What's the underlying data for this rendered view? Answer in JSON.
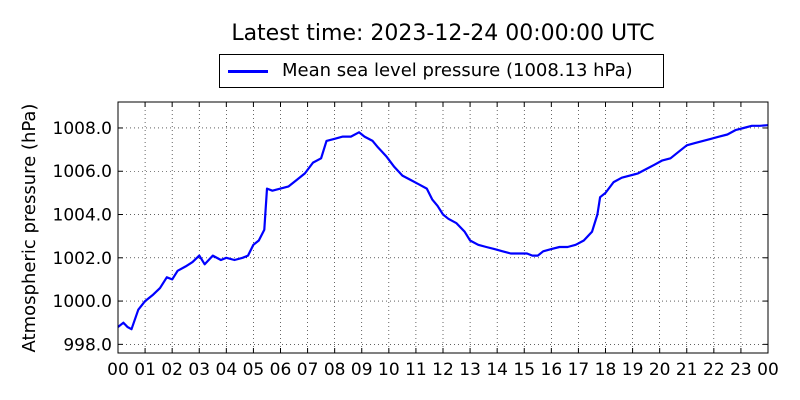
{
  "chart_data": {
    "type": "line",
    "title": "Latest time: 2023-12-24 00:00:00 UTC",
    "ylabel": "Atmospheric pressure (hPa)",
    "xlabel": "",
    "x_unit": "hour",
    "xlim": [
      0,
      24
    ],
    "ylim": [
      997.6,
      1009.2
    ],
    "grid": true,
    "legend_position": "top-center",
    "x_ticks": [
      0,
      1,
      2,
      3,
      4,
      5,
      6,
      7,
      8,
      9,
      10,
      11,
      12,
      13,
      14,
      15,
      16,
      17,
      18,
      19,
      20,
      21,
      22,
      23,
      24
    ],
    "x_tick_labels": [
      "00",
      "01",
      "02",
      "03",
      "04",
      "05",
      "06",
      "07",
      "08",
      "09",
      "10",
      "11",
      "12",
      "13",
      "14",
      "15",
      "16",
      "17",
      "18",
      "19",
      "20",
      "21",
      "22",
      "23",
      "00"
    ],
    "y_ticks": [
      998.0,
      1000.0,
      1002.0,
      1004.0,
      1006.0,
      1008.0
    ],
    "y_tick_labels": [
      "998.0",
      "1000.0",
      "1002.0",
      "1004.0",
      "1006.0",
      "1008.0"
    ],
    "series": [
      {
        "name": "Mean sea level pressure (1008.13 hPa)",
        "color": "#0000ff",
        "x": [
          0.0,
          0.2,
          0.35,
          0.5,
          0.75,
          1.0,
          1.3,
          1.55,
          1.8,
          2.0,
          2.2,
          2.5,
          2.75,
          3.0,
          3.2,
          3.5,
          3.8,
          4.0,
          4.3,
          4.6,
          4.8,
          5.0,
          5.2,
          5.4,
          5.5,
          5.7,
          6.0,
          6.3,
          6.6,
          6.9,
          7.2,
          7.5,
          7.7,
          8.0,
          8.3,
          8.6,
          8.9,
          9.1,
          9.4,
          9.6,
          9.9,
          10.2,
          10.5,
          10.8,
          11.1,
          11.4,
          11.6,
          11.8,
          12.0,
          12.2,
          12.5,
          12.8,
          13.0,
          13.3,
          13.6,
          13.9,
          14.2,
          14.5,
          14.8,
          15.1,
          15.3,
          15.5,
          15.7,
          16.0,
          16.3,
          16.6,
          16.9,
          17.2,
          17.5,
          17.7,
          17.8,
          18.0,
          18.3,
          18.6,
          18.9,
          19.2,
          19.5,
          19.8,
          20.1,
          20.4,
          20.7,
          21.0,
          21.3,
          21.6,
          21.9,
          22.2,
          22.5,
          22.8,
          23.1,
          23.4,
          23.7,
          24.0
        ],
        "y": [
          998.8,
          999.0,
          998.8,
          998.7,
          999.6,
          1000.0,
          1000.3,
          1000.6,
          1001.1,
          1001.0,
          1001.4,
          1001.6,
          1001.8,
          1002.1,
          1001.7,
          1002.1,
          1001.9,
          1002.0,
          1001.9,
          1002.0,
          1002.1,
          1002.6,
          1002.8,
          1003.3,
          1005.2,
          1005.1,
          1005.2,
          1005.3,
          1005.6,
          1005.9,
          1006.4,
          1006.6,
          1007.4,
          1007.5,
          1007.6,
          1007.6,
          1007.8,
          1007.6,
          1007.4,
          1007.1,
          1006.7,
          1006.2,
          1005.8,
          1005.6,
          1005.4,
          1005.2,
          1004.7,
          1004.4,
          1004.0,
          1003.8,
          1003.6,
          1003.2,
          1002.8,
          1002.6,
          1002.5,
          1002.4,
          1002.3,
          1002.2,
          1002.2,
          1002.2,
          1002.1,
          1002.1,
          1002.3,
          1002.4,
          1002.5,
          1002.5,
          1002.6,
          1002.8,
          1003.2,
          1004.0,
          1004.8,
          1005.0,
          1005.5,
          1005.7,
          1005.8,
          1005.9,
          1006.1,
          1006.3,
          1006.5,
          1006.6,
          1006.9,
          1007.2,
          1007.3,
          1007.4,
          1007.5,
          1007.6,
          1007.7,
          1007.9,
          1008.0,
          1008.1,
          1008.1,
          1008.13
        ]
      }
    ]
  }
}
